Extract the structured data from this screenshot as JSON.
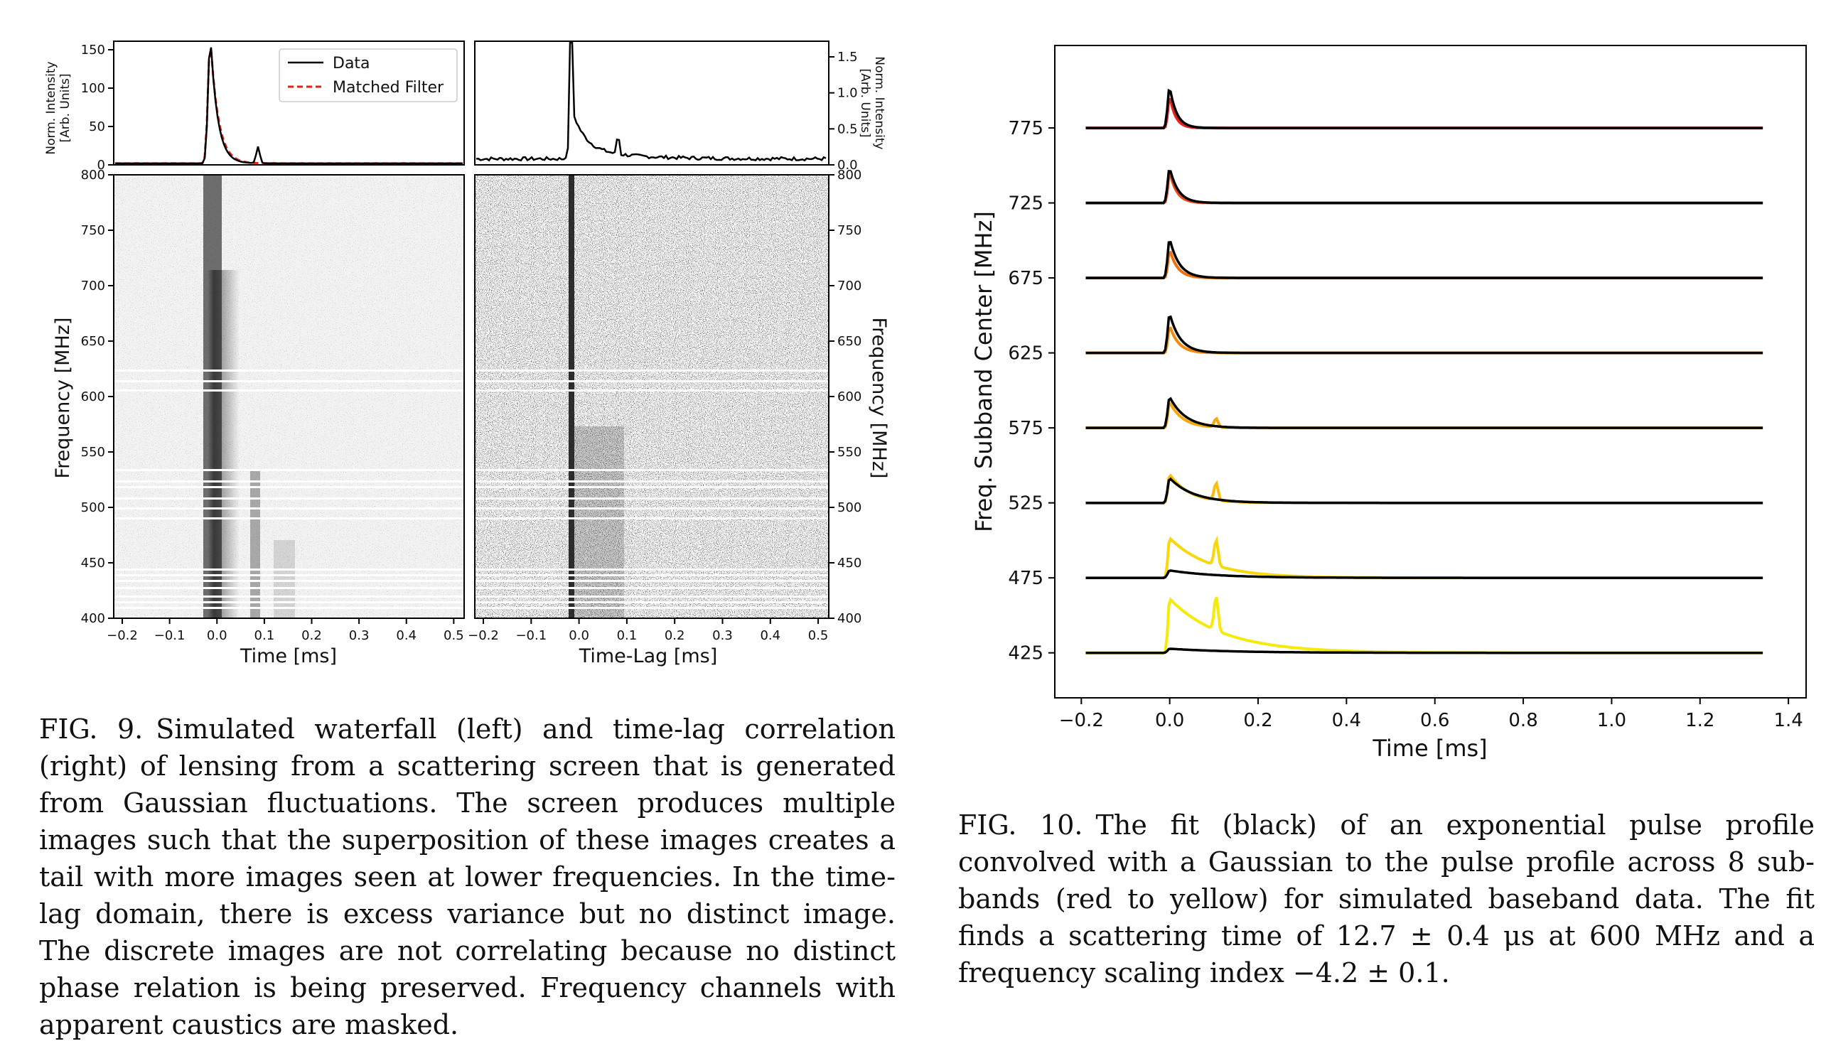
{
  "fig9": {
    "caption_label": "FIG. 9.",
    "caption_text": "Simulated waterfall (left) and time-lag correlation (right) of lensing from a scattering screen that is generated from Gaussian fluctuations. The screen produces multiple images such that the superposition of these images creates a tail with more images seen at lower frequencies. In the time-lag domain, there is excess variance but no distinct image. The discrete images are not correlating because no distinct phase relation is being preserved. Frequency channels with apparent caustics are masked.",
    "left_profile": {
      "ylabel_line1": "Norm. Intensity",
      "ylabel_line2": "[Arb. Units]",
      "yticks": [
        "0",
        "50",
        "100",
        "150"
      ],
      "legend": [
        "Data",
        "Matched Filter"
      ]
    },
    "right_profile": {
      "ylabel_line1": "Norm. Intensity",
      "ylabel_line2": "[Arb. Units]",
      "yticks": [
        "0.0",
        "0.5",
        "1.0",
        "1.5"
      ]
    },
    "left_waterfall": {
      "xlabel": "Time [ms]",
      "ylabel": "Frequency [MHz]",
      "xticks": [
        "−0.2",
        "−0.1",
        "0.0",
        "0.1",
        "0.2",
        "0.3",
        "0.4",
        "0.5"
      ],
      "yticks": [
        "400",
        "450",
        "500",
        "550",
        "600",
        "650",
        "700",
        "750",
        "800"
      ]
    },
    "right_waterfall": {
      "xlabel": "Time-Lag [ms]",
      "ylabel": "Frequency [MHz]",
      "xticks": [
        "−0.2",
        "−0.1",
        "0.0",
        "0.1",
        "0.2",
        "0.3",
        "0.4",
        "0.5"
      ],
      "yticks": [
        "400",
        "450",
        "500",
        "550",
        "600",
        "650",
        "700",
        "750",
        "800"
      ]
    }
  },
  "fig10": {
    "caption_label": "FIG. 10.",
    "caption_text": "The fit (black) of an exponential pulse profile convolved with a Gaussian to the pulse profile across 8 sub-bands (red to yellow) for simulated baseband data. The fit finds a scattering time of 12.7 ± 0.4 μs at 600 MHz and a frequency scaling index −4.2 ± 0.1.",
    "chart_data": {
      "type": "line",
      "xlabel": "Time [ms]",
      "ylabel": "Freq. Subband Center [MHz]",
      "xticks": [
        "−0.2",
        "0.0",
        "0.2",
        "0.4",
        "0.6",
        "0.8",
        "1.0",
        "1.2",
        "1.4"
      ],
      "xlim": [
        -0.26,
        1.44
      ],
      "subbands": [
        775,
        725,
        675,
        625,
        575,
        525,
        475,
        425
      ],
      "subband_colors": [
        "#e8211c",
        "#ec4a18",
        "#f06f12",
        "#f38a10",
        "#f6a80e",
        "#f8c00c",
        "#f7d80a",
        "#f5ea08"
      ],
      "fit_color": "#000000"
    }
  },
  "colors": {
    "data_line": "#000000",
    "matched_filter": "#e0201a"
  }
}
